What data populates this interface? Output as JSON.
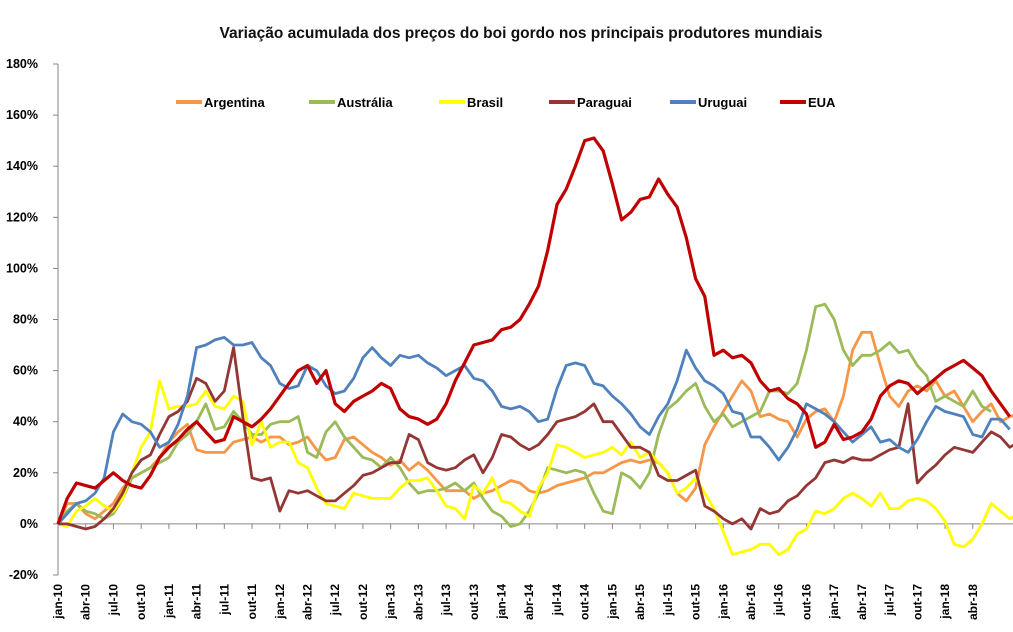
{
  "chart_data": {
    "type": "line",
    "title": "Variação acumulada dos preços do boi gordo nos principais produtores mundiais",
    "xlabel": "",
    "ylabel": "",
    "ylim": [
      -20,
      180
    ],
    "ytick_step": 20,
    "y_unit": "%",
    "grid": false,
    "legend_position": "top",
    "x_tick_labels": [
      "jan-10",
      "abr-10",
      "jul-10",
      "out-10",
      "jan-11",
      "abr-11",
      "jul-11",
      "out-11",
      "jan-12",
      "abr-12",
      "jul-12",
      "out-12",
      "jan-13",
      "abr-13",
      "jul-13",
      "out-13",
      "jan-14",
      "abr-14",
      "jul-14",
      "out-14",
      "jan-15",
      "abr-15",
      "jul-15",
      "out-15",
      "jan-16",
      "abr-16",
      "jul-16",
      "out-16",
      "jan-17",
      "abr-17",
      "jul-17",
      "out-17",
      "jan-18",
      "abr-18"
    ],
    "x_start": "jan-10",
    "x_frequency": "monthly",
    "series": [
      {
        "name": "Argentina",
        "color": "#F79646",
        "values": [
          0,
          8,
          8,
          4,
          2,
          5,
          8,
          14,
          18,
          20,
          22,
          26,
          32,
          36,
          39,
          29,
          28,
          28,
          28,
          32,
          33,
          34,
          32,
          34,
          34,
          31,
          32,
          34,
          29,
          25,
          26,
          33,
          34,
          31,
          28,
          26,
          23,
          25,
          21,
          24,
          21,
          17,
          13,
          13,
          13,
          10,
          12,
          13,
          15,
          17,
          16,
          13,
          12,
          13,
          15,
          16,
          17,
          18,
          20,
          20,
          22,
          24,
          25,
          24,
          25,
          24,
          20,
          12,
          9,
          14,
          31,
          38,
          44,
          50,
          56,
          52,
          42,
          43,
          41,
          40,
          34,
          41,
          44,
          45,
          40,
          50,
          68,
          75,
          75,
          62,
          50,
          46,
          52,
          54,
          52,
          56,
          50,
          52,
          46,
          40,
          44,
          47,
          40,
          42,
          43,
          46,
          48
        ]
      },
      {
        "name": "Austrália",
        "color": "#9BBB59",
        "values": [
          0,
          5,
          8,
          5,
          4,
          2,
          4,
          10,
          18,
          20,
          22,
          24,
          26,
          32,
          35,
          40,
          47,
          37,
          38,
          44,
          40,
          35,
          35,
          39,
          40,
          40,
          42,
          28,
          26,
          36,
          40,
          34,
          30,
          26,
          25,
          22,
          26,
          22,
          16,
          12,
          13,
          13,
          14,
          16,
          13,
          16,
          10,
          5,
          3,
          -1,
          0,
          5,
          12,
          22,
          21,
          20,
          21,
          20,
          12,
          5,
          4,
          20,
          18,
          14,
          20,
          35,
          45,
          48,
          52,
          55,
          46,
          40,
          43,
          38,
          40,
          42,
          44,
          52,
          52,
          51,
          55,
          68,
          85,
          86,
          80,
          68,
          62,
          66,
          66,
          68,
          71,
          67,
          68,
          62,
          58,
          48,
          50,
          48,
          46,
          52,
          46,
          44
        ]
      },
      {
        "name": "Brasil",
        "color": "#FFFF00",
        "values": [
          0,
          -1,
          5,
          7,
          10,
          7,
          5,
          10,
          20,
          30,
          36,
          56,
          45,
          46,
          46,
          47,
          52,
          46,
          45,
          50,
          48,
          31,
          40,
          30,
          32,
          32,
          24,
          22,
          14,
          8,
          7,
          6,
          12,
          11,
          10,
          10,
          10,
          14,
          17,
          17,
          18,
          13,
          7,
          6,
          2,
          15,
          12,
          18,
          9,
          8,
          5,
          3,
          14,
          20,
          31,
          30,
          28,
          26,
          27,
          28,
          30,
          27,
          32,
          26,
          28,
          24,
          20,
          12,
          14,
          18,
          12,
          6,
          -3,
          -12,
          -11,
          -10,
          -8,
          -8,
          -12,
          -10,
          -4,
          -2,
          5,
          4,
          6,
          10,
          12,
          10,
          7,
          12,
          6,
          6,
          9,
          10,
          9,
          6,
          1,
          -8,
          -9,
          -6,
          0,
          8,
          5,
          2,
          4,
          7,
          3,
          3,
          2
        ]
      },
      {
        "name": "Paraguai",
        "color": "#943634",
        "values": [
          0,
          0,
          -1,
          -2,
          -1,
          2,
          6,
          12,
          20,
          25,
          27,
          35,
          42,
          44,
          48,
          57,
          55,
          48,
          52,
          69,
          42,
          18,
          17,
          18,
          5,
          13,
          12,
          13,
          11,
          9,
          9,
          12,
          15,
          19,
          20,
          22,
          24,
          24,
          35,
          33,
          24,
          22,
          21,
          22,
          25,
          27,
          20,
          26,
          35,
          34,
          31,
          29,
          31,
          35,
          40,
          41,
          42,
          44,
          47,
          40,
          40,
          35,
          30,
          30,
          28,
          19,
          17,
          17,
          19,
          21,
          7,
          5,
          2,
          0,
          2,
          -2,
          6,
          4,
          5,
          9,
          11,
          15,
          18,
          24,
          25,
          24,
          26,
          25,
          25,
          27,
          29,
          30,
          47,
          16,
          20,
          23,
          27,
          30,
          29,
          28,
          32,
          36,
          34,
          30,
          32,
          35
        ]
      },
      {
        "name": "Uruguai",
        "color": "#4F81BD",
        "values": [
          0,
          4,
          8,
          9,
          12,
          18,
          36,
          43,
          40,
          39,
          36,
          30,
          32,
          39,
          50,
          69,
          70,
          72,
          73,
          70,
          70,
          71,
          65,
          62,
          55,
          53,
          54,
          62,
          60,
          54,
          51,
          52,
          57,
          65,
          69,
          65,
          62,
          66,
          65,
          66,
          63,
          61,
          58,
          60,
          62,
          57,
          56,
          52,
          46,
          45,
          46,
          44,
          40,
          41,
          53,
          62,
          63,
          62,
          55,
          54,
          50,
          47,
          43,
          38,
          35,
          42,
          47,
          56,
          68,
          61,
          56,
          54,
          51,
          44,
          43,
          34,
          34,
          30,
          25,
          30,
          37,
          47,
          45,
          43,
          40,
          36,
          32,
          35,
          38,
          32,
          33,
          30,
          28,
          33,
          40,
          46,
          44,
          43,
          42,
          35,
          34,
          41,
          41,
          37
        ]
      },
      {
        "name": "EUA",
        "color": "#C00000",
        "values": [
          0,
          10,
          16,
          15,
          14,
          17,
          20,
          17,
          15,
          14,
          19,
          26,
          30,
          33,
          37,
          40,
          36,
          32,
          33,
          42,
          40,
          38,
          41,
          45,
          50,
          55,
          60,
          62,
          55,
          60,
          47,
          44,
          48,
          50,
          52,
          55,
          53,
          45,
          42,
          41,
          39,
          41,
          47,
          56,
          63,
          70,
          71,
          72,
          76,
          77,
          80,
          86,
          93,
          107,
          125,
          131,
          140,
          150,
          151,
          146,
          133,
          119,
          122,
          127,
          128,
          135,
          129,
          124,
          112,
          96,
          89,
          66,
          68,
          65,
          66,
          63,
          56,
          52,
          53,
          49,
          47,
          43,
          30,
          32,
          39,
          33,
          34,
          36,
          41,
          50,
          54,
          56,
          55,
          51,
          54,
          57,
          60,
          62,
          64,
          61,
          58,
          52,
          47,
          42
        ]
      }
    ]
  }
}
